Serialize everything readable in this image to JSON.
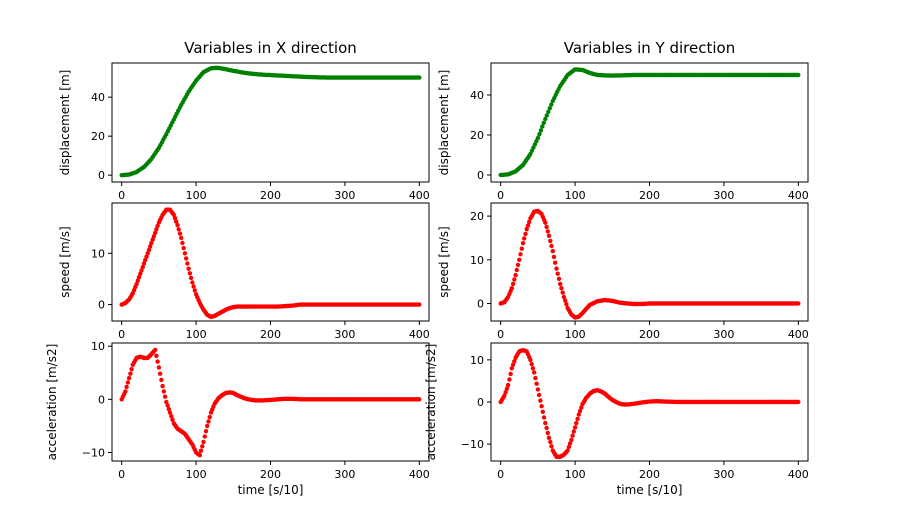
{
  "chart_data": [
    {
      "type": "scatter",
      "title": "Variables in X direction",
      "xlabel": "",
      "ylabel": "displacement [m]",
      "xlim": [
        -13,
        413
      ],
      "ylim": [
        -3.5,
        57.5
      ],
      "xticks": [
        0,
        100,
        200,
        300,
        400
      ],
      "yticks": [
        0,
        20,
        40
      ],
      "grid": false,
      "color": "#008000",
      "series": [
        {
          "x": [
            0,
            10,
            20,
            30,
            40,
            50,
            60,
            70,
            80,
            90,
            100,
            110,
            120,
            130,
            140,
            150,
            160,
            170,
            180,
            190,
            200,
            210,
            220,
            230,
            240,
            250,
            260,
            270,
            280,
            290,
            300,
            310,
            320,
            330,
            340,
            350,
            360,
            370,
            380,
            390,
            400
          ],
          "y": [
            0,
            0.3,
            1.6,
            4.2,
            8.3,
            14,
            21,
            28.5,
            36,
            42.8,
            48.5,
            52.8,
            54.8,
            55,
            54.3,
            53.5,
            52.8,
            52.2,
            51.8,
            51.5,
            51.3,
            51.1,
            50.9,
            50.7,
            50.5,
            50.3,
            50.2,
            50.1,
            50,
            50,
            50,
            50,
            50,
            50,
            50,
            50,
            50,
            50,
            50,
            50,
            50
          ]
        }
      ]
    },
    {
      "type": "scatter",
      "title": "Variables in Y direction",
      "xlabel": "",
      "ylabel": "displacement [m]",
      "xlim": [
        -13,
        413
      ],
      "ylim": [
        -3.5,
        56
      ],
      "xticks": [
        0,
        100,
        200,
        300,
        400
      ],
      "yticks": [
        0,
        20,
        40
      ],
      "grid": false,
      "color": "#008000",
      "series": [
        {
          "x": [
            0,
            10,
            20,
            30,
            40,
            50,
            60,
            70,
            80,
            90,
            100,
            110,
            120,
            130,
            140,
            150,
            160,
            170,
            180,
            190,
            200,
            220,
            240,
            260,
            280,
            300,
            320,
            340,
            360,
            380,
            400
          ],
          "y": [
            0,
            0.3,
            1.8,
            5,
            10.5,
            18.5,
            28,
            37,
            44.5,
            50,
            52.8,
            52.5,
            51,
            50,
            49.8,
            49.7,
            49.8,
            49.9,
            50,
            50,
            50,
            50,
            50,
            50,
            50,
            50,
            50,
            50,
            50,
            50,
            50
          ]
        }
      ]
    },
    {
      "type": "scatter",
      "title": "",
      "xlabel": "",
      "ylabel": "speed [m/s]",
      "xlim": [
        -13,
        413
      ],
      "ylim": [
        -3.2,
        19.8
      ],
      "xticks": [
        0,
        100,
        200,
        300,
        400
      ],
      "yticks": [
        0,
        10
      ],
      "grid": false,
      "color": "#ff0000",
      "series": [
        {
          "x": [
            0,
            5,
            10,
            15,
            20,
            25,
            30,
            35,
            40,
            45,
            50,
            55,
            60,
            65,
            70,
            75,
            80,
            85,
            90,
            95,
            100,
            105,
            110,
            115,
            120,
            125,
            130,
            135,
            140,
            145,
            150,
            155,
            160,
            165,
            170,
            180,
            190,
            200,
            210,
            220,
            230,
            240,
            260,
            280,
            300,
            320,
            340,
            360,
            380,
            400
          ],
          "y": [
            0,
            0.3,
            1,
            2.2,
            4,
            6,
            8,
            10,
            12,
            14,
            16,
            17.5,
            18.5,
            18.5,
            17.5,
            15.5,
            13,
            10,
            7,
            4.3,
            2,
            0.3,
            -1,
            -2,
            -2.4,
            -2.2,
            -1.8,
            -1.4,
            -1,
            -0.7,
            -0.5,
            -0.4,
            -0.4,
            -0.4,
            -0.4,
            -0.4,
            -0.4,
            -0.4,
            -0.4,
            -0.3,
            -0.2,
            0,
            0,
            0,
            0,
            0,
            0,
            0,
            0,
            0
          ]
        }
      ]
    },
    {
      "type": "scatter",
      "title": "",
      "xlabel": "",
      "ylabel": "speed [m/s]",
      "xlim": [
        -13,
        413
      ],
      "ylim": [
        -4,
        23
      ],
      "xticks": [
        0,
        100,
        200,
        300,
        400
      ],
      "yticks": [
        0,
        10,
        20
      ],
      "grid": false,
      "color": "#ff0000",
      "series": [
        {
          "x": [
            0,
            5,
            10,
            15,
            20,
            25,
            30,
            35,
            40,
            45,
            50,
            55,
            60,
            65,
            70,
            75,
            80,
            85,
            90,
            95,
            100,
            105,
            110,
            115,
            120,
            130,
            140,
            150,
            160,
            170,
            180,
            190,
            200,
            220,
            240,
            260,
            280,
            300,
            320,
            340,
            360,
            380,
            400
          ],
          "y": [
            0,
            0.3,
            1.5,
            3.5,
            6.5,
            10,
            13.8,
            17,
            19.5,
            21,
            21.2,
            20.5,
            18.5,
            15.5,
            12,
            8,
            4.5,
            1.5,
            -1,
            -2.5,
            -3.2,
            -3,
            -2.2,
            -1.2,
            -0.3,
            0.5,
            0.8,
            0.6,
            0.2,
            0,
            -0.1,
            -0.1,
            0,
            0,
            0,
            0,
            0,
            0,
            0,
            0,
            0,
            0,
            0
          ]
        }
      ]
    },
    {
      "type": "scatter",
      "title": "",
      "xlabel": "time [s/10]",
      "ylabel": "acceleration [m/s2]",
      "xlim": [
        -13,
        413
      ],
      "ylim": [
        -11.6,
        10.6
      ],
      "xticks": [
        0,
        100,
        200,
        300,
        400
      ],
      "yticks": [
        -10,
        0,
        10
      ],
      "grid": false,
      "color": "#ff0000",
      "series": [
        {
          "x": [
            0,
            5,
            10,
            15,
            20,
            25,
            30,
            35,
            40,
            45,
            50,
            55,
            60,
            65,
            70,
            75,
            80,
            85,
            90,
            95,
            100,
            105,
            110,
            115,
            120,
            125,
            130,
            135,
            140,
            145,
            150,
            155,
            160,
            165,
            170,
            180,
            190,
            200,
            210,
            220,
            230,
            240,
            260,
            280,
            300,
            320,
            340,
            360,
            380,
            400
          ],
          "y": [
            0,
            1.5,
            4,
            6.5,
            7.8,
            8,
            7.8,
            7.8,
            8.5,
            9.3,
            6,
            2.5,
            -0.5,
            -2.5,
            -4.5,
            -5.5,
            -6,
            -6.5,
            -7.5,
            -8.5,
            -10,
            -10.5,
            -8,
            -5,
            -2.5,
            -0.8,
            0.2,
            0.8,
            1.2,
            1.3,
            1.2,
            0.8,
            0.5,
            0.2,
            0,
            -0.2,
            -0.2,
            -0.1,
            0,
            0.1,
            0.1,
            0,
            0,
            0,
            0,
            0,
            0,
            0,
            0,
            0
          ]
        }
      ]
    },
    {
      "type": "scatter",
      "title": "",
      "xlabel": "time [s/10]",
      "ylabel": "acceleration [m/s2]",
      "xlim": [
        -13,
        413
      ],
      "ylim": [
        -14,
        14
      ],
      "xticks": [
        0,
        100,
        200,
        300,
        400
      ],
      "yticks": [
        -10,
        0,
        10
      ],
      "grid": false,
      "color": "#ff0000",
      "series": [
        {
          "x": [
            0,
            5,
            10,
            15,
            20,
            25,
            30,
            35,
            40,
            45,
            50,
            55,
            60,
            65,
            70,
            75,
            80,
            85,
            90,
            95,
            100,
            105,
            110,
            115,
            120,
            125,
            130,
            135,
            140,
            145,
            150,
            155,
            160,
            165,
            170,
            180,
            190,
            200,
            210,
            220,
            240,
            260,
            280,
            300,
            320,
            340,
            360,
            380,
            400
          ],
          "y": [
            0,
            1.5,
            4,
            8,
            10.5,
            12,
            12.3,
            12,
            10,
            7,
            3,
            -1,
            -5,
            -8.5,
            -11.5,
            -13,
            -13,
            -12.5,
            -11.5,
            -9,
            -6,
            -3,
            -0.5,
            1,
            2,
            2.6,
            2.8,
            2.5,
            2,
            1.2,
            0.5,
            0,
            -0.4,
            -0.6,
            -0.6,
            -0.4,
            -0.1,
            0.1,
            0.2,
            0.1,
            0,
            0,
            0,
            0,
            0,
            0,
            0,
            0,
            0
          ]
        }
      ]
    }
  ]
}
